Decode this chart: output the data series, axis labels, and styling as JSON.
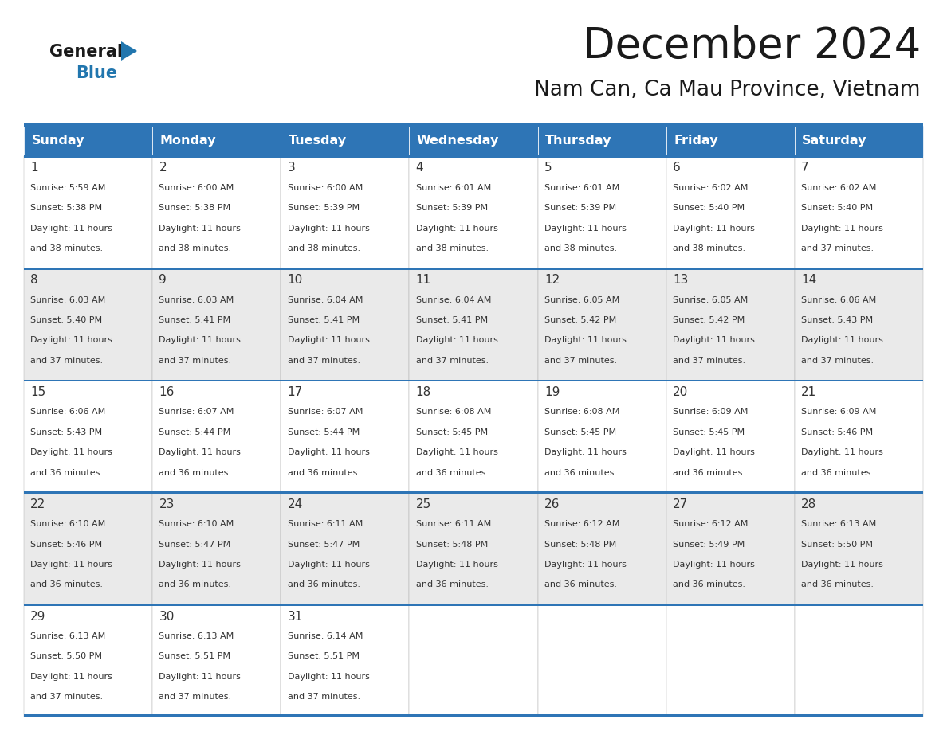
{
  "title": "December 2024",
  "subtitle": "Nam Can, Ca Mau Province, Vietnam",
  "header_color": "#2E75B6",
  "header_text_color": "#FFFFFF",
  "days_of_week": [
    "Sunday",
    "Monday",
    "Tuesday",
    "Wednesday",
    "Thursday",
    "Friday",
    "Saturday"
  ],
  "bg_color": "#FFFFFF",
  "row_bg": [
    "#FFFFFF",
    "#EAEAEA"
  ],
  "border_color": "#2E75B6",
  "cell_border_color": "#AAAAAA",
  "text_color": "#333333",
  "week_data": [
    {
      "days": [
        {
          "num": "1",
          "sunrise": "5:59 AM",
          "sunset": "5:38 PM",
          "daylight": "11 hours and 38 minutes."
        },
        {
          "num": "2",
          "sunrise": "6:00 AM",
          "sunset": "5:38 PM",
          "daylight": "11 hours and 38 minutes."
        },
        {
          "num": "3",
          "sunrise": "6:00 AM",
          "sunset": "5:39 PM",
          "daylight": "11 hours and 38 minutes."
        },
        {
          "num": "4",
          "sunrise": "6:01 AM",
          "sunset": "5:39 PM",
          "daylight": "11 hours and 38 minutes."
        },
        {
          "num": "5",
          "sunrise": "6:01 AM",
          "sunset": "5:39 PM",
          "daylight": "11 hours and 38 minutes."
        },
        {
          "num": "6",
          "sunrise": "6:02 AM",
          "sunset": "5:40 PM",
          "daylight": "11 hours and 38 minutes."
        },
        {
          "num": "7",
          "sunrise": "6:02 AM",
          "sunset": "5:40 PM",
          "daylight": "11 hours and 37 minutes."
        }
      ]
    },
    {
      "days": [
        {
          "num": "8",
          "sunrise": "6:03 AM",
          "sunset": "5:40 PM",
          "daylight": "11 hours and 37 minutes."
        },
        {
          "num": "9",
          "sunrise": "6:03 AM",
          "sunset": "5:41 PM",
          "daylight": "11 hours and 37 minutes."
        },
        {
          "num": "10",
          "sunrise": "6:04 AM",
          "sunset": "5:41 PM",
          "daylight": "11 hours and 37 minutes."
        },
        {
          "num": "11",
          "sunrise": "6:04 AM",
          "sunset": "5:41 PM",
          "daylight": "11 hours and 37 minutes."
        },
        {
          "num": "12",
          "sunrise": "6:05 AM",
          "sunset": "5:42 PM",
          "daylight": "11 hours and 37 minutes."
        },
        {
          "num": "13",
          "sunrise": "6:05 AM",
          "sunset": "5:42 PM",
          "daylight": "11 hours and 37 minutes."
        },
        {
          "num": "14",
          "sunrise": "6:06 AM",
          "sunset": "5:43 PM",
          "daylight": "11 hours and 37 minutes."
        }
      ]
    },
    {
      "days": [
        {
          "num": "15",
          "sunrise": "6:06 AM",
          "sunset": "5:43 PM",
          "daylight": "11 hours and 36 minutes."
        },
        {
          "num": "16",
          "sunrise": "6:07 AM",
          "sunset": "5:44 PM",
          "daylight": "11 hours and 36 minutes."
        },
        {
          "num": "17",
          "sunrise": "6:07 AM",
          "sunset": "5:44 PM",
          "daylight": "11 hours and 36 minutes."
        },
        {
          "num": "18",
          "sunrise": "6:08 AM",
          "sunset": "5:45 PM",
          "daylight": "11 hours and 36 minutes."
        },
        {
          "num": "19",
          "sunrise": "6:08 AM",
          "sunset": "5:45 PM",
          "daylight": "11 hours and 36 minutes."
        },
        {
          "num": "20",
          "sunrise": "6:09 AM",
          "sunset": "5:45 PM",
          "daylight": "11 hours and 36 minutes."
        },
        {
          "num": "21",
          "sunrise": "6:09 AM",
          "sunset": "5:46 PM",
          "daylight": "11 hours and 36 minutes."
        }
      ]
    },
    {
      "days": [
        {
          "num": "22",
          "sunrise": "6:10 AM",
          "sunset": "5:46 PM",
          "daylight": "11 hours and 36 minutes."
        },
        {
          "num": "23",
          "sunrise": "6:10 AM",
          "sunset": "5:47 PM",
          "daylight": "11 hours and 36 minutes."
        },
        {
          "num": "24",
          "sunrise": "6:11 AM",
          "sunset": "5:47 PM",
          "daylight": "11 hours and 36 minutes."
        },
        {
          "num": "25",
          "sunrise": "6:11 AM",
          "sunset": "5:48 PM",
          "daylight": "11 hours and 36 minutes."
        },
        {
          "num": "26",
          "sunrise": "6:12 AM",
          "sunset": "5:48 PM",
          "daylight": "11 hours and 36 minutes."
        },
        {
          "num": "27",
          "sunrise": "6:12 AM",
          "sunset": "5:49 PM",
          "daylight": "11 hours and 36 minutes."
        },
        {
          "num": "28",
          "sunrise": "6:13 AM",
          "sunset": "5:50 PM",
          "daylight": "11 hours and 36 minutes."
        }
      ]
    },
    {
      "days": [
        {
          "num": "29",
          "sunrise": "6:13 AM",
          "sunset": "5:50 PM",
          "daylight": "11 hours and 37 minutes."
        },
        {
          "num": "30",
          "sunrise": "6:13 AM",
          "sunset": "5:51 PM",
          "daylight": "11 hours and 37 minutes."
        },
        {
          "num": "31",
          "sunrise": "6:14 AM",
          "sunset": "5:51 PM",
          "daylight": "11 hours and 37 minutes."
        },
        null,
        null,
        null,
        null
      ]
    }
  ]
}
